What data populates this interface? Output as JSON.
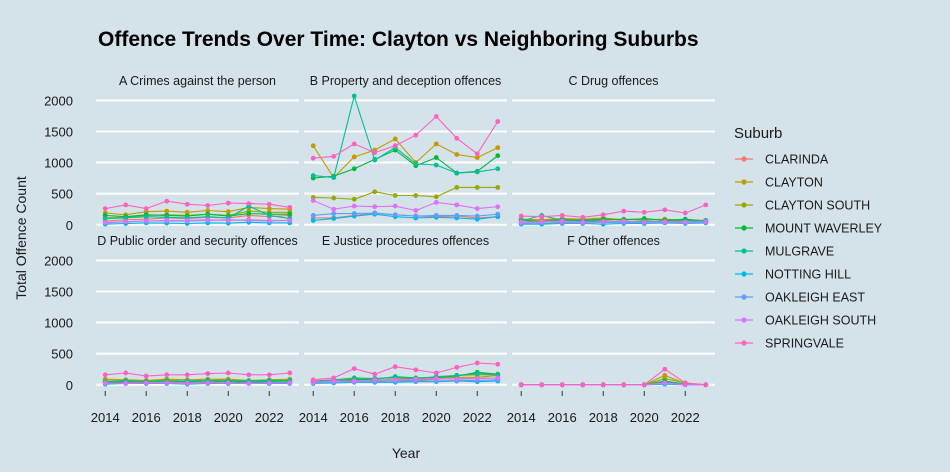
{
  "chart_data": {
    "type": "line",
    "title": "Offence Trends Over Time: Clayton vs Neighboring Suburbs",
    "xlabel": "Year",
    "ylabel": "Total Offence Count",
    "x": [
      2014,
      2015,
      2016,
      2017,
      2018,
      2019,
      2020,
      2021,
      2022,
      2023
    ],
    "xticks": [
      "2014",
      "2016",
      "2018",
      "2020",
      "2022"
    ],
    "xlim": [
      2013.55,
      2023.45
    ],
    "yticks": [
      "0",
      "500",
      "1000",
      "1500",
      "2000"
    ],
    "ylim": [
      -100,
      2150
    ],
    "grid": true,
    "legend": {
      "title": "Suburb",
      "position": "right"
    },
    "series": [
      {
        "name": "CLARINDA",
        "color": "#F8766D"
      },
      {
        "name": "CLAYTON",
        "color": "#C49A00"
      },
      {
        "name": "CLAYTON SOUTH",
        "color": "#99A800"
      },
      {
        "name": "MOUNT WAVERLEY",
        "color": "#00BA38"
      },
      {
        "name": "MULGRAVE",
        "color": "#00BF96"
      },
      {
        "name": "NOTTING HILL",
        "color": "#00B8E7"
      },
      {
        "name": "OAKLEIGH EAST",
        "color": "#619CFF"
      },
      {
        "name": "OAKLEIGH SOUTH",
        "color": "#DB72FB"
      },
      {
        "name": "SPRINGVALE",
        "color": "#FF61C3"
      }
    ],
    "panels": [
      {
        "label": "A Crimes against the person",
        "data": {
          "CLARINDA": [
            60,
            80,
            90,
            110,
            100,
            120,
            110,
            150,
            130,
            150
          ],
          "CLAYTON": [
            190,
            160,
            210,
            220,
            200,
            230,
            210,
            280,
            260,
            250
          ],
          "CLAYTON SOUTH": [
            110,
            120,
            150,
            160,
            150,
            170,
            150,
            220,
            200,
            200
          ],
          "MOUNT WAVERLEY": [
            150,
            130,
            160,
            150,
            140,
            170,
            140,
            180,
            170,
            170
          ],
          "MULGRAVE": [
            100,
            110,
            130,
            120,
            110,
            130,
            110,
            300,
            150,
            100
          ],
          "NOTTING HILL": [
            10,
            20,
            30,
            25,
            20,
            30,
            25,
            40,
            30,
            30
          ],
          "OAKLEIGH EAST": [
            30,
            50,
            60,
            60,
            60,
            70,
            80,
            70,
            60,
            70
          ],
          "OAKLEIGH SOUTH": [
            40,
            50,
            60,
            70,
            70,
            80,
            70,
            80,
            70,
            70
          ],
          "SPRINGVALE": [
            260,
            320,
            260,
            380,
            330,
            310,
            350,
            340,
            330,
            280
          ]
        }
      },
      {
        "label": "B Property and deception offences",
        "data": {
          "CLARINDA": [
            110,
            110,
            150,
            190,
            160,
            140,
            130,
            140,
            110,
            130
          ],
          "CLAYTON": [
            1270,
            760,
            1090,
            1200,
            1380,
            1000,
            1300,
            1130,
            1080,
            1240
          ],
          "CLAYTON SOUTH": [
            440,
            430,
            410,
            530,
            470,
            470,
            450,
            600,
            600,
            600
          ],
          "MOUNT WAVERLEY": [
            750,
            780,
            900,
            1050,
            1200,
            950,
            1080,
            830,
            860,
            1110
          ],
          "MULGRAVE": [
            790,
            760,
            2070,
            1040,
            1240,
            980,
            960,
            830,
            850,
            900
          ],
          "NOTTING HILL": [
            70,
            100,
            140,
            170,
            130,
            110,
            120,
            110,
            90,
            130
          ],
          "OAKLEIGH EAST": [
            150,
            180,
            180,
            190,
            160,
            140,
            150,
            150,
            140,
            170
          ],
          "OAKLEIGH SOUTH": [
            390,
            250,
            300,
            290,
            300,
            230,
            360,
            320,
            260,
            290
          ],
          "SPRINGVALE": [
            1070,
            1100,
            1300,
            1160,
            1270,
            1440,
            1740,
            1390,
            1140,
            1660
          ]
        }
      },
      {
        "label": "C Drug offences",
        "data": {
          "CLARINDA": [
            30,
            60,
            40,
            50,
            60,
            50,
            40,
            60,
            70,
            50
          ],
          "CLAYTON": [
            90,
            80,
            100,
            90,
            110,
            80,
            90,
            80,
            80,
            70
          ],
          "CLAYTON SOUTH": [
            80,
            70,
            90,
            80,
            80,
            90,
            80,
            90,
            70,
            60
          ],
          "MOUNT WAVERLEY": [
            70,
            50,
            80,
            70,
            90,
            80,
            100,
            70,
            90,
            60
          ],
          "MULGRAVE": [
            60,
            150,
            70,
            60,
            60,
            50,
            60,
            50,
            60,
            70
          ],
          "NOTTING HILL": [
            10,
            10,
            20,
            20,
            10,
            20,
            20,
            30,
            20,
            30
          ],
          "OAKLEIGH EAST": [
            20,
            30,
            30,
            30,
            40,
            30,
            40,
            40,
            30,
            40
          ],
          "OAKLEIGH SOUTH": [
            40,
            50,
            60,
            40,
            50,
            60,
            40,
            50,
            40,
            50
          ],
          "SPRINGVALE": [
            140,
            130,
            150,
            120,
            160,
            220,
            200,
            240,
            190,
            320
          ]
        }
      },
      {
        "label": "D Public order and security offences",
        "data": {
          "CLARINDA": [
            30,
            40,
            40,
            50,
            40,
            40,
            50,
            40,
            50,
            40
          ],
          "CLAYTON": [
            90,
            80,
            70,
            90,
            80,
            90,
            90,
            70,
            80,
            90
          ],
          "CLAYTON SOUTH": [
            60,
            70,
            60,
            70,
            60,
            70,
            80,
            60,
            70,
            60
          ],
          "MOUNT WAVERLEY": [
            40,
            50,
            50,
            60,
            50,
            60,
            50,
            40,
            50,
            40
          ],
          "MULGRAVE": [
            50,
            60,
            50,
            60,
            60,
            70,
            60,
            60,
            70,
            70
          ],
          "NOTTING HILL": [
            10,
            20,
            20,
            20,
            10,
            20,
            20,
            20,
            20,
            20
          ],
          "OAKLEIGH EAST": [
            20,
            30,
            30,
            30,
            30,
            30,
            30,
            30,
            30,
            30
          ],
          "OAKLEIGH SOUTH": [
            30,
            20,
            30,
            30,
            20,
            30,
            30,
            20,
            30,
            30
          ],
          "SPRINGVALE": [
            160,
            190,
            140,
            160,
            160,
            180,
            190,
            160,
            160,
            190
          ]
        }
      },
      {
        "label": "E Justice procedures offences",
        "data": {
          "CLARINDA": [
            50,
            60,
            70,
            60,
            80,
            70,
            90,
            100,
            100,
            110
          ],
          "CLAYTON": [
            60,
            80,
            90,
            100,
            110,
            90,
            110,
            120,
            120,
            150
          ],
          "CLAYTON SOUTH": [
            50,
            60,
            70,
            70,
            90,
            80,
            100,
            150,
            160,
            160
          ],
          "MOUNT WAVERLEY": [
            40,
            60,
            80,
            90,
            130,
            110,
            120,
            140,
            200,
            170
          ],
          "MULGRAVE": [
            50,
            80,
            110,
            100,
            120,
            100,
            130,
            150,
            180,
            160
          ],
          "NOTTING HILL": [
            20,
            30,
            40,
            40,
            40,
            50,
            50,
            60,
            50,
            60
          ],
          "OAKLEIGH EAST": [
            30,
            40,
            50,
            50,
            60,
            60,
            60,
            70,
            70,
            80
          ],
          "OAKLEIGH SOUTH": [
            40,
            60,
            60,
            80,
            80,
            90,
            100,
            90,
            100,
            110
          ],
          "SPRINGVALE": [
            80,
            110,
            260,
            170,
            290,
            240,
            190,
            280,
            350,
            330
          ]
        }
      },
      {
        "label": "F Other offences",
        "data": {
          "CLARINDA": [
            0,
            0,
            0,
            0,
            0,
            0,
            0,
            20,
            0,
            0
          ],
          "CLAYTON": [
            0,
            0,
            0,
            0,
            0,
            0,
            0,
            150,
            20,
            0
          ],
          "CLAYTON SOUTH": [
            0,
            0,
            0,
            0,
            0,
            0,
            0,
            100,
            30,
            0
          ],
          "MOUNT WAVERLEY": [
            0,
            0,
            0,
            0,
            0,
            0,
            0,
            60,
            10,
            0
          ],
          "MULGRAVE": [
            0,
            0,
            0,
            0,
            0,
            0,
            0,
            40,
            10,
            0
          ],
          "NOTTING HILL": [
            0,
            0,
            0,
            0,
            0,
            0,
            0,
            10,
            0,
            0
          ],
          "OAKLEIGH EAST": [
            0,
            0,
            0,
            0,
            0,
            0,
            0,
            20,
            0,
            0
          ],
          "OAKLEIGH SOUTH": [
            0,
            0,
            0,
            0,
            0,
            0,
            0,
            30,
            0,
            0
          ],
          "SPRINGVALE": [
            0,
            0,
            0,
            0,
            0,
            0,
            0,
            250,
            30,
            0
          ]
        }
      }
    ]
  }
}
